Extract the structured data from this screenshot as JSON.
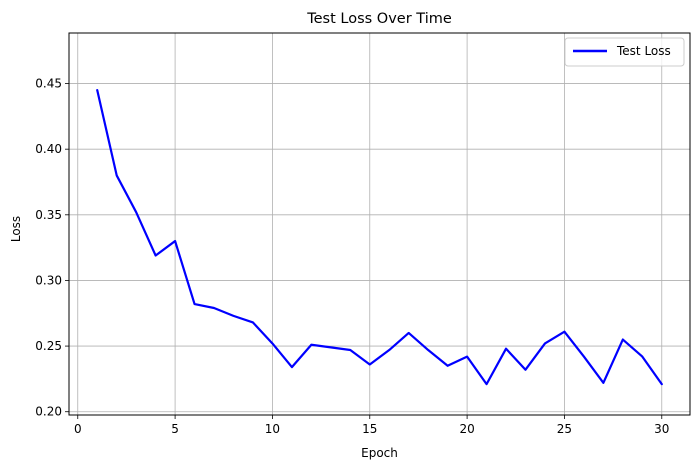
{
  "chart_data": {
    "type": "line",
    "title": "Test Loss Over Time",
    "xlabel": "Epoch",
    "ylabel": "Loss",
    "xlim": [
      -0.45,
      31.45
    ],
    "ylim": [
      0.1975,
      0.4885
    ],
    "xticks": [
      0,
      5,
      10,
      15,
      20,
      25,
      30
    ],
    "yticks": [
      0.2,
      0.25,
      0.3,
      0.35,
      0.4,
      0.45
    ],
    "xtick_labels": [
      "0",
      "5",
      "10",
      "15",
      "20",
      "25",
      "30"
    ],
    "ytick_labels": [
      "0.20",
      "0.25",
      "0.30",
      "0.35",
      "0.40",
      "0.45"
    ],
    "grid": true,
    "legend_position": "top-right",
    "series": [
      {
        "name": "Test Loss",
        "color": "#0000ff",
        "x": [
          1,
          2,
          3,
          4,
          5,
          6,
          7,
          8,
          9,
          10,
          11,
          12,
          13,
          14,
          15,
          16,
          17,
          18,
          19,
          20,
          21,
          22,
          23,
          24,
          25,
          26,
          27,
          28,
          29,
          30
        ],
        "y": [
          0.445,
          0.38,
          0.352,
          0.319,
          0.33,
          0.282,
          0.279,
          0.273,
          0.268,
          0.252,
          0.234,
          0.251,
          0.249,
          0.247,
          0.236,
          0.247,
          0.26,
          0.247,
          0.235,
          0.242,
          0.221,
          0.248,
          0.232,
          0.252,
          0.261,
          0.242,
          0.222,
          0.255,
          0.242,
          0.221
        ]
      }
    ]
  }
}
